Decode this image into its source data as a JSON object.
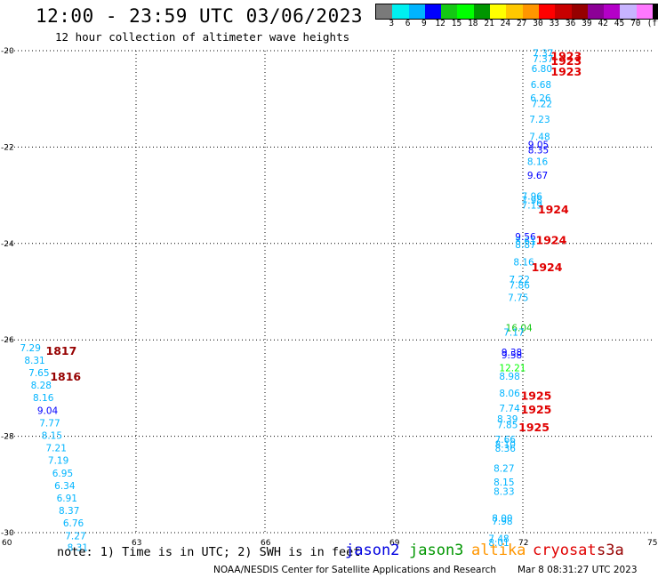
{
  "header": {
    "title": "12:00 - 23:59 UTC 03/06/2023",
    "subtitle": "12 hour collection of altimeter wave heights"
  },
  "legend": {
    "colors": [
      "#7a7a7a",
      "#00f0f0",
      "#00b4ff",
      "#0000ff",
      "#14c814",
      "#00ff00",
      "#009600",
      "#ffff00",
      "#ffc800",
      "#ff9600",
      "#ff0000",
      "#c80000",
      "#960000",
      "#8c0096",
      "#b400c8",
      "#c8b4ff",
      "#ff78ff",
      "#000000"
    ],
    "labels": [
      "3",
      "6",
      "9",
      "12",
      "15",
      "18",
      "21",
      "24",
      "27",
      "30",
      "33",
      "36",
      "39",
      "42",
      "45",
      "70",
      "(ft)"
    ]
  },
  "chart_data": {
    "type": "scatter",
    "xlim": [
      60,
      75
    ],
    "ylim": [
      -30,
      -20
    ],
    "x_ticks": [
      60,
      63,
      66,
      69,
      72,
      75
    ],
    "y_ticks": [
      -20,
      -22,
      -24,
      -26,
      -28,
      -30
    ],
    "grid": true,
    "tracks": [
      {
        "name": "track-left",
        "points": [
          {
            "x": 60.3,
            "y": -26.16,
            "v": "7.29",
            "c": "#00b4ff"
          },
          {
            "x": 60.4,
            "y": -26.42,
            "v": "8.31",
            "c": "#00b4ff"
          },
          {
            "x": 60.5,
            "y": -26.68,
            "v": "7.65",
            "c": "#00b4ff"
          },
          {
            "x": 60.55,
            "y": -26.94,
            "v": "8.28",
            "c": "#00b4ff"
          },
          {
            "x": 60.6,
            "y": -27.2,
            "v": "8.16",
            "c": "#00b4ff"
          },
          {
            "x": 60.7,
            "y": -27.46,
            "v": "9.04",
            "c": "#0000ff"
          },
          {
            "x": 60.75,
            "y": -27.72,
            "v": "7.77",
            "c": "#00b4ff"
          },
          {
            "x": 60.8,
            "y": -27.98,
            "v": "8.15",
            "c": "#00b4ff"
          },
          {
            "x": 60.9,
            "y": -28.24,
            "v": "7.21",
            "c": "#00b4ff"
          },
          {
            "x": 60.95,
            "y": -28.5,
            "v": "7.19",
            "c": "#00b4ff"
          },
          {
            "x": 61.05,
            "y": -28.76,
            "v": "6.95",
            "c": "#00b4ff"
          },
          {
            "x": 61.1,
            "y": -29.02,
            "v": "6.34",
            "c": "#00b4ff"
          },
          {
            "x": 61.15,
            "y": -29.28,
            "v": "6.91",
            "c": "#00b4ff"
          },
          {
            "x": 61.2,
            "y": -29.54,
            "v": "8.37",
            "c": "#00b4ff"
          },
          {
            "x": 61.3,
            "y": -29.8,
            "v": "6.76",
            "c": "#00b4ff"
          },
          {
            "x": 61.35,
            "y": -30.06,
            "v": "7.27",
            "c": "#00b4ff"
          },
          {
            "x": 61.4,
            "y": -30.3,
            "v": "8.31",
            "c": "#00b4ff"
          }
        ]
      },
      {
        "name": "track-right",
        "points": [
          {
            "x": 72.23,
            "y": -20.05,
            "v": "7.37",
            "c": "#00b4ff"
          },
          {
            "x": 72.23,
            "y": -20.17,
            "v": "7.37",
            "c": "#00b4ff"
          },
          {
            "x": 72.2,
            "y": -20.37,
            "v": "6.80",
            "c": "#00b4ff"
          },
          {
            "x": 72.18,
            "y": -20.7,
            "v": "6.68",
            "c": "#00b4ff"
          },
          {
            "x": 72.17,
            "y": -20.98,
            "v": "6.26",
            "c": "#00b4ff"
          },
          {
            "x": 72.2,
            "y": -21.1,
            "v": "7.22",
            "c": "#00b4ff"
          },
          {
            "x": 72.15,
            "y": -21.42,
            "v": "7.23",
            "c": "#00b4ff"
          },
          {
            "x": 72.15,
            "y": -21.78,
            "v": "7.48",
            "c": "#00b4ff"
          },
          {
            "x": 72.12,
            "y": -21.95,
            "v": "9.05",
            "c": "#0000ff"
          },
          {
            "x": 72.12,
            "y": -22.06,
            "v": "8.35",
            "c": "#0000ff"
          },
          {
            "x": 72.1,
            "y": -22.3,
            "v": "8.16",
            "c": "#00b4ff"
          },
          {
            "x": 72.1,
            "y": -22.58,
            "v": "9.67",
            "c": "#0000ff"
          },
          {
            "x": 71.97,
            "y": -23.02,
            "v": "7.96",
            "c": "#00b4ff"
          },
          {
            "x": 71.97,
            "y": -23.1,
            "v": "7.98",
            "c": "#00b4ff"
          },
          {
            "x": 71.97,
            "y": -23.2,
            "v": "7.19",
            "c": "#00b4ff"
          },
          {
            "x": 71.82,
            "y": -23.86,
            "v": "9.56",
            "c": "#0000ff"
          },
          {
            "x": 71.82,
            "y": -23.95,
            "v": "8.61",
            "c": "#00b4ff"
          },
          {
            "x": 71.82,
            "y": -24.02,
            "v": "8.87",
            "c": "#00b4ff"
          },
          {
            "x": 71.78,
            "y": -24.38,
            "v": "8.16",
            "c": "#00b4ff"
          },
          {
            "x": 71.68,
            "y": -24.74,
            "v": "7.22",
            "c": "#00b4ff"
          },
          {
            "x": 71.68,
            "y": -24.86,
            "v": "7.86",
            "c": "#00b4ff"
          },
          {
            "x": 71.65,
            "y": -25.12,
            "v": "7.75",
            "c": "#00b4ff"
          },
          {
            "x": 71.6,
            "y": -25.75,
            "v": "16.04",
            "c": "#14c814"
          },
          {
            "x": 71.55,
            "y": -25.84,
            "v": "7.17",
            "c": "#00b4ff"
          },
          {
            "x": 71.5,
            "y": -26.25,
            "v": "9.38",
            "c": "#0000ff"
          },
          {
            "x": 71.5,
            "y": -26.31,
            "v": "9.58",
            "c": "#0000ff"
          },
          {
            "x": 71.45,
            "y": -26.58,
            "v": "12.21",
            "c": "#00ff00"
          },
          {
            "x": 71.45,
            "y": -26.75,
            "v": "8.98",
            "c": "#00b4ff"
          },
          {
            "x": 71.45,
            "y": -27.1,
            "v": "8.06",
            "c": "#00b4ff"
          },
          {
            "x": 71.45,
            "y": -27.42,
            "v": "7.74",
            "c": "#00b4ff"
          },
          {
            "x": 71.4,
            "y": -27.64,
            "v": "8.39",
            "c": "#00b4ff"
          },
          {
            "x": 71.4,
            "y": -27.76,
            "v": "7.85",
            "c": "#00b4ff"
          },
          {
            "x": 71.35,
            "y": -28.06,
            "v": "7.66",
            "c": "#00b4ff"
          },
          {
            "x": 71.35,
            "y": -28.16,
            "v": "8.10",
            "c": "#00b4ff"
          },
          {
            "x": 71.35,
            "y": -28.25,
            "v": "8.36",
            "c": "#00b4ff"
          },
          {
            "x": 71.32,
            "y": -28.66,
            "v": "8.27",
            "c": "#00b4ff"
          },
          {
            "x": 71.32,
            "y": -28.95,
            "v": "8.15",
            "c": "#00b4ff"
          },
          {
            "x": 71.32,
            "y": -29.14,
            "v": "8.33",
            "c": "#00b4ff"
          },
          {
            "x": 71.28,
            "y": -29.7,
            "v": "8.00",
            "c": "#00b4ff"
          },
          {
            "x": 71.28,
            "y": -29.76,
            "v": "7.98",
            "c": "#00b4ff"
          },
          {
            "x": 71.2,
            "y": -30.12,
            "v": "7.48",
            "c": "#00b4ff"
          },
          {
            "x": 71.2,
            "y": -30.2,
            "v": "8.01",
            "c": "#00b4ff"
          }
        ]
      }
    ],
    "time_labels": [
      {
        "x": 72.65,
        "y": -20.1,
        "v": "1923",
        "c": "#e00000"
      },
      {
        "x": 72.65,
        "y": -20.2,
        "v": "1923",
        "c": "#e00000"
      },
      {
        "x": 72.65,
        "y": -20.42,
        "v": "1923",
        "c": "#e00000"
      },
      {
        "x": 72.35,
        "y": -23.28,
        "v": "1924",
        "c": "#e00000"
      },
      {
        "x": 72.3,
        "y": -23.92,
        "v": "1924",
        "c": "#e00000"
      },
      {
        "x": 72.2,
        "y": -24.48,
        "v": "1924",
        "c": "#e00000"
      },
      {
        "x": 71.95,
        "y": -27.15,
        "v": "1925",
        "c": "#e00000"
      },
      {
        "x": 71.95,
        "y": -27.44,
        "v": "1925",
        "c": "#e00000"
      },
      {
        "x": 71.9,
        "y": -27.8,
        "v": "1925",
        "c": "#e00000"
      },
      {
        "x": 60.9,
        "y": -26.22,
        "v": "1817",
        "c": "#960000"
      },
      {
        "x": 61.0,
        "y": -26.75,
        "v": "1816",
        "c": "#960000"
      }
    ]
  },
  "footer": {
    "note": "note: 1) Time is in UTC; 2) SWH is in feet",
    "satellites": [
      {
        "name": "jason2",
        "color": "#0000e0"
      },
      {
        "name": "jason3",
        "color": "#009600"
      },
      {
        "name": "altika",
        "color": "#ff9600"
      },
      {
        "name": "cryosat",
        "color": "#e00000"
      },
      {
        "name": "s3a",
        "color": "#960000"
      }
    ],
    "credit": "NOAA/NESDIS Center for Satellite Applications and Research",
    "generated": "Mar  8 08:31:27 UTC 2023"
  }
}
